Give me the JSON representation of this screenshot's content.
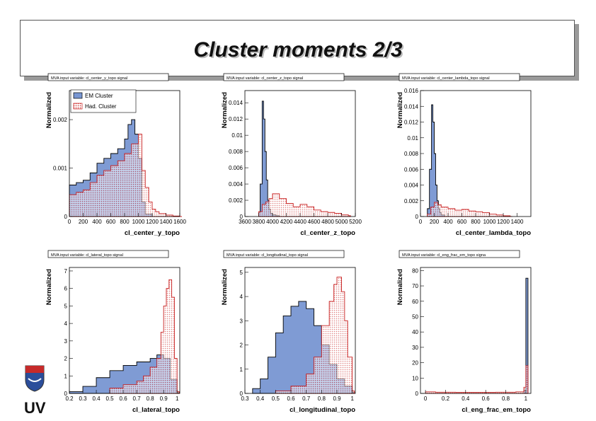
{
  "slide": {
    "title": "Cluster moments 2/3",
    "footer_logo_text": "UV"
  },
  "colors": {
    "em_fill": "#7896d2",
    "em_line": "#000000",
    "had_fill": "#f2c8cc",
    "had_line": "#c81e1e",
    "frame": "#000000"
  },
  "chart_data": [
    {
      "type": "histogram",
      "panel_title": "MVA input variable: cl_center_y_topo signal",
      "xlabel": "cl_center_y_topo",
      "ylabel": "Normalized",
      "xlim": [
        0,
        1600
      ],
      "ylim": [
        0,
        0.0026
      ],
      "xticks": [
        0,
        200,
        400,
        600,
        800,
        1000,
        1200,
        1400,
        1600
      ],
      "yticks": [
        0,
        0.001,
        0.002
      ],
      "ytick_labels": [
        "0",
        "0.001",
        "0.002"
      ],
      "legend": {
        "position": "top-left",
        "entries": [
          "EM Cluster",
          "Had. Cluster"
        ]
      },
      "series": [
        {
          "name": "EM Cluster",
          "x": [
            0,
            100,
            200,
            300,
            400,
            500,
            600,
            700,
            800,
            850,
            900,
            950,
            1000,
            1050,
            1100,
            1200
          ],
          "y": [
            0.00065,
            0.0007,
            0.00075,
            0.0009,
            0.0011,
            0.0012,
            0.0013,
            0.0014,
            0.0016,
            0.0019,
            0.002,
            0.0017,
            0.0012,
            0.0003,
            5e-05,
            0
          ]
        },
        {
          "name": "Had. Cluster",
          "x": [
            0,
            100,
            200,
            300,
            400,
            500,
            600,
            700,
            800,
            900,
            1000,
            1050,
            1100,
            1150,
            1200,
            1250,
            1300,
            1400,
            1500,
            1600
          ],
          "y": [
            0.00045,
            0.0005,
            0.00055,
            0.0007,
            0.00085,
            0.00095,
            0.00105,
            0.00115,
            0.0013,
            0.0015,
            0.0017,
            0.00095,
            0.0006,
            0.0003,
            0.00015,
            0.0001,
            6e-05,
            3e-05,
            1e-05,
            0
          ]
        }
      ]
    },
    {
      "type": "histogram",
      "panel_title": "MVA input variable: cl_center_z_topo signal",
      "xlabel": "cl_center_z_topo",
      "ylabel": "Normalized",
      "xlim": [
        3600,
        5200
      ],
      "ylim": [
        0,
        0.0155
      ],
      "xticks": [
        3600,
        3800,
        4000,
        4200,
        4400,
        4600,
        4800,
        5000,
        5200
      ],
      "yticks": [
        0,
        0.002,
        0.004,
        0.006,
        0.008,
        0.01,
        0.012,
        0.014
      ],
      "ytick_labels": [
        "0",
        "0.002",
        "0.004",
        "0.006",
        "0.008",
        "0.01",
        "0.012",
        "0.014"
      ],
      "series": [
        {
          "name": "EM Cluster",
          "x": [
            3800,
            3820,
            3850,
            3870,
            3890,
            3910,
            3930,
            3950,
            3970,
            4000,
            4050,
            4100
          ],
          "y": [
            0.0005,
            0.004,
            0.0142,
            0.012,
            0.008,
            0.0045,
            0.002,
            0.0009,
            0.0004,
            0.0002,
            0.0001,
            0
          ]
        },
        {
          "name": "Had. Cluster",
          "x": [
            3800,
            3850,
            3900,
            3950,
            4000,
            4100,
            4200,
            4300,
            4400,
            4500,
            4600,
            4700,
            4800,
            4900,
            5000,
            5100
          ],
          "y": [
            0.0006,
            0.0015,
            0.0018,
            0.0022,
            0.0028,
            0.0022,
            0.0016,
            0.0012,
            0.0015,
            0.0012,
            0.0008,
            0.0006,
            0.0005,
            0.0004,
            0.0002,
            0.0001
          ]
        }
      ]
    },
    {
      "type": "histogram",
      "panel_title": "MVA input variable: cl_center_lambda_topo signal",
      "xlabel": "cl_center_lambda_topo",
      "ylabel": "Normalized",
      "xlim": [
        0,
        1600
      ],
      "ylim": [
        0,
        0.016
      ],
      "xticks": [
        0,
        200,
        400,
        600,
        800,
        1000,
        1200,
        1400
      ],
      "yticks": [
        0,
        0.002,
        0.004,
        0.006,
        0.008,
        0.01,
        0.012,
        0.014,
        0.016
      ],
      "ytick_labels": [
        "0",
        "0.002",
        "0.004",
        "0.006",
        "0.008",
        "0.01",
        "0.012",
        "0.014",
        "0.016"
      ],
      "series": [
        {
          "name": "EM Cluster",
          "x": [
            100,
            130,
            160,
            180,
            200,
            220,
            240,
            260,
            280,
            300,
            350
          ],
          "y": [
            0.001,
            0.006,
            0.0142,
            0.012,
            0.008,
            0.004,
            0.002,
            0.001,
            0.0005,
            0.0002,
            0
          ]
        },
        {
          "name": "Had. Cluster",
          "x": [
            100,
            150,
            200,
            250,
            300,
            400,
            500,
            600,
            700,
            800,
            900,
            1000,
            1100,
            1200,
            1300
          ],
          "y": [
            0.0003,
            0.0012,
            0.0018,
            0.0015,
            0.0012,
            0.001,
            0.0008,
            0.0009,
            0.0007,
            0.0006,
            0.0005,
            0.0003,
            0.0002,
            0.0001,
            0
          ]
        }
      ]
    },
    {
      "type": "histogram",
      "panel_title": "MVA input variable: cl_lateral_topo signal",
      "xlabel": "cl_lateral_topo",
      "ylabel": "Normalized",
      "xlim": [
        0.2,
        1.02
      ],
      "ylim": [
        0,
        7.2
      ],
      "xticks": [
        0.2,
        0.3,
        0.4,
        0.5,
        0.6,
        0.7,
        0.8,
        0.9,
        1
      ],
      "yticks": [
        0,
        1,
        2,
        3,
        4,
        5,
        6,
        7
      ],
      "ytick_labels": [
        "0",
        "1",
        "2",
        "3",
        "4",
        "5",
        "6",
        "7"
      ],
      "series": [
        {
          "name": "EM Cluster",
          "x": [
            0.2,
            0.3,
            0.4,
            0.5,
            0.6,
            0.7,
            0.8,
            0.85,
            0.9,
            0.95,
            1.0
          ],
          "y": [
            0.1,
            0.4,
            0.9,
            1.3,
            1.6,
            1.8,
            2.0,
            2.2,
            2.0,
            0.8,
            0.05
          ]
        },
        {
          "name": "Had. Cluster",
          "x": [
            0.5,
            0.6,
            0.7,
            0.75,
            0.8,
            0.85,
            0.88,
            0.9,
            0.92,
            0.94,
            0.96,
            0.98,
            1.0
          ],
          "y": [
            0.3,
            0.5,
            0.7,
            1.0,
            1.5,
            2.0,
            3.5,
            5.0,
            6.0,
            6.5,
            5.5,
            2.0,
            0.1
          ]
        }
      ]
    },
    {
      "type": "histogram",
      "panel_title": "MVA input variable: cl_longitudinal_topo signal",
      "xlabel": "cl_longitudinal_topo",
      "ylabel": "Normalized",
      "xlim": [
        0.3,
        1.02
      ],
      "ylim": [
        0,
        5.2
      ],
      "xticks": [
        0.3,
        0.4,
        0.5,
        0.6,
        0.7,
        0.8,
        0.9,
        1
      ],
      "yticks": [
        0,
        1,
        2,
        3,
        4,
        5
      ],
      "ytick_labels": [
        "0",
        "1",
        "2",
        "3",
        "4",
        "5"
      ],
      "series": [
        {
          "name": "EM Cluster",
          "x": [
            0.35,
            0.4,
            0.45,
            0.5,
            0.55,
            0.6,
            0.65,
            0.7,
            0.75,
            0.8,
            0.85,
            0.9,
            0.95,
            1.0
          ],
          "y": [
            0.2,
            0.6,
            1.5,
            2.5,
            3.2,
            3.6,
            3.8,
            3.5,
            2.8,
            2.0,
            1.2,
            0.6,
            0.3,
            0.05
          ]
        },
        {
          "name": "Had. Cluster",
          "x": [
            0.5,
            0.6,
            0.7,
            0.75,
            0.8,
            0.85,
            0.88,
            0.9,
            0.93,
            0.95,
            0.97,
            1.0
          ],
          "y": [
            0.1,
            0.3,
            0.8,
            1.5,
            2.8,
            3.8,
            4.5,
            4.8,
            4.2,
            3.0,
            1.5,
            0.1
          ]
        }
      ]
    },
    {
      "type": "histogram",
      "panel_title": "MVA input variable: cl_eng_frac_em_topo signa",
      "xlabel": "cl_eng_frac_em_topo",
      "ylabel": "Normalized",
      "xlim": [
        -0.05,
        1.05
      ],
      "ylim": [
        0,
        82
      ],
      "xticks": [
        0,
        0.2,
        0.4,
        0.6,
        0.8,
        1
      ],
      "yticks": [
        0,
        10,
        20,
        30,
        40,
        50,
        60,
        70,
        80
      ],
      "ytick_labels": [
        "0",
        "10",
        "20",
        "30",
        "40",
        "50",
        "60",
        "70",
        "80"
      ],
      "series": [
        {
          "name": "EM Cluster",
          "x": [
            0.98,
            1.0
          ],
          "y": [
            2,
            75
          ]
        },
        {
          "name": "Had. Cluster",
          "x": [
            0,
            0.1,
            0.3,
            0.5,
            0.7,
            0.9,
            0.98,
            1.0
          ],
          "y": [
            1.0,
            0.8,
            0.7,
            0.7,
            0.8,
            1.0,
            4,
            18
          ]
        }
      ]
    }
  ]
}
